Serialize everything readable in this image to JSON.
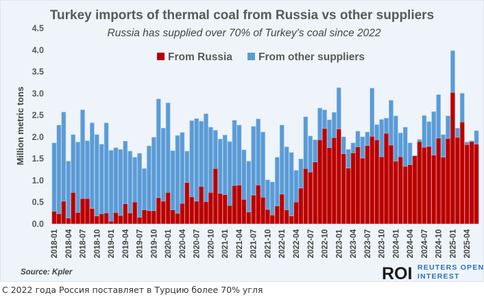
{
  "chart_data": {
    "type": "bar",
    "stacked": true,
    "title": "Turkey imports of thermal coal from Russia vs other suppliers",
    "subtitle": "Russia has supplied over 70% of Turkey's coal since 2022",
    "xlabel": "",
    "ylabel": "Million metric tons",
    "ylim": [
      0,
      4.5
    ],
    "yticks": [
      "0.0",
      "0.5",
      "1.0",
      "1.5",
      "2.0",
      "2.5",
      "3.0",
      "3.5",
      "4.0",
      "4.5"
    ],
    "grid": false,
    "legend_placement": "top-center",
    "categories": [
      "2018-01",
      "2018-02",
      "2018-03",
      "2018-04",
      "2018-05",
      "2018-06",
      "2018-07",
      "2018-08",
      "2018-09",
      "2018-10",
      "2018-11",
      "2018-12",
      "2019-01",
      "2019-02",
      "2019-03",
      "2019-04",
      "2019-05",
      "2019-06",
      "2019-07",
      "2019-08",
      "2019-09",
      "2019-10",
      "2019-11",
      "2019-12",
      "2020-01",
      "2020-02",
      "2020-03",
      "2020-04",
      "2020-05",
      "2020-06",
      "2020-07",
      "2020-08",
      "2020-09",
      "2020-10",
      "2020-11",
      "2020-12",
      "2021-01",
      "2021-02",
      "2021-03",
      "2021-04",
      "2021-05",
      "2021-06",
      "2021-07",
      "2021-08",
      "2021-09",
      "2021-10",
      "2021-11",
      "2021-12",
      "2022-01",
      "2022-02",
      "2022-03",
      "2022-04",
      "2022-05",
      "2022-06",
      "2022-07",
      "2022-08",
      "2022-09",
      "2022-10",
      "2022-11",
      "2022-12",
      "2023-01",
      "2023-02",
      "2023-03",
      "2023-04",
      "2023-05",
      "2023-06",
      "2023-07",
      "2023-08",
      "2023-09",
      "2023-10",
      "2023-11",
      "2023-12",
      "2024-01",
      "2024-02",
      "2024-03",
      "2024-04",
      "2024-05",
      "2024-06",
      "2024-07",
      "2024-08",
      "2024-09",
      "2024-10",
      "2024-11",
      "2024-12",
      "2025-01",
      "2025-02",
      "2025-03",
      "2025-04",
      "2025-05",
      "2025-06"
    ],
    "xtick_labels": [
      "2018-01",
      "2018-04",
      "2018-07",
      "2018-10",
      "2019-01",
      "2019-04",
      "2019-07",
      "2019-10",
      "2020-01",
      "2020-04",
      "2020-07",
      "2020-10",
      "2021-01",
      "2021-04",
      "2021-07",
      "2021-10",
      "2022-01",
      "2022-04",
      "2022-07",
      "2022-10",
      "2023-01",
      "2023-04",
      "2023-07",
      "2023-10",
      "2024-01",
      "2024-04",
      "2024-07",
      "2024-10",
      "2025-01",
      "2025-04"
    ],
    "series": [
      {
        "name": "From Russia",
        "color": "#b80000",
        "values": [
          0.29,
          0.23,
          0.52,
          0.13,
          0.72,
          0.26,
          0.58,
          0.58,
          0.35,
          0.18,
          0.23,
          0.25,
          0.06,
          0.26,
          0.19,
          0.46,
          0.25,
          0.5,
          0.15,
          0.32,
          0.3,
          0.3,
          0.6,
          0.52,
          0.72,
          0.32,
          0.24,
          0.47,
          0.95,
          0.62,
          0.52,
          0.86,
          0.51,
          0.72,
          1.27,
          0.7,
          0.67,
          0.42,
          0.88,
          0.89,
          0.56,
          0.27,
          0.66,
          0.89,
          0.61,
          0.33,
          0.2,
          0.41,
          0.68,
          0.32,
          0.18,
          0.5,
          0.82,
          1.27,
          1.19,
          1.42,
          1.93,
          2.19,
          1.75,
          1.98,
          2.18,
          1.61,
          1.28,
          1.63,
          1.77,
          1.51,
          1.8,
          2.01,
          1.93,
          1.54,
          2.08,
          1.81,
          1.44,
          1.54,
          1.32,
          1.36,
          1.56,
          1.89,
          1.76,
          1.78,
          1.58,
          1.97,
          1.53,
          1.96,
          3.02,
          1.99,
          2.34,
          1.82,
          1.89,
          1.83
        ]
      },
      {
        "name": "From other suppliers",
        "color": "#5b9bd5",
        "values": [
          1.57,
          2.04,
          2.05,
          1.31,
          1.33,
          1.62,
          2.04,
          1.33,
          1.97,
          1.87,
          1.6,
          2.07,
          1.63,
          1.49,
          1.52,
          1.44,
          1.42,
          1.03,
          1.47,
          0.95,
          1.49,
          1.69,
          2.27,
          1.68,
          2.06,
          1.36,
          1.79,
          1.63,
          0.72,
          1.75,
          1.9,
          1.5,
          2.02,
          1.5,
          0.88,
          1.25,
          1.37,
          1.47,
          1.5,
          1.38,
          1.14,
          1.17,
          1.58,
          1.52,
          1.5,
          0.68,
          0.76,
          1.12,
          1.59,
          1.45,
          1.46,
          0.73,
          0.67,
          1.19,
          0.83,
          0.51,
          0.73,
          0.43,
          0.64,
          0.58,
          0.95,
          0.39,
          0.43,
          0.23,
          0.36,
          0.49,
          0.31,
          1.11,
          0.35,
          0.86,
          0.35,
          1.03,
          1.04,
          0.55,
          0.9,
          0.5,
          0.0,
          0.05,
          0.73,
          0.57,
          1.0,
          1.0,
          0.52,
          0.52,
          0.96,
          0.21,
          0.66,
          0.06,
          0.02,
          0.31
        ]
      }
    ]
  },
  "source": "Source: Kpler",
  "logo": {
    "mark": "ROI",
    "line1": "REUTERS OPEN",
    "line2": "INTEREST"
  },
  "caption": "С 2022 года Россия поставляет в Турцию более 70% угля"
}
